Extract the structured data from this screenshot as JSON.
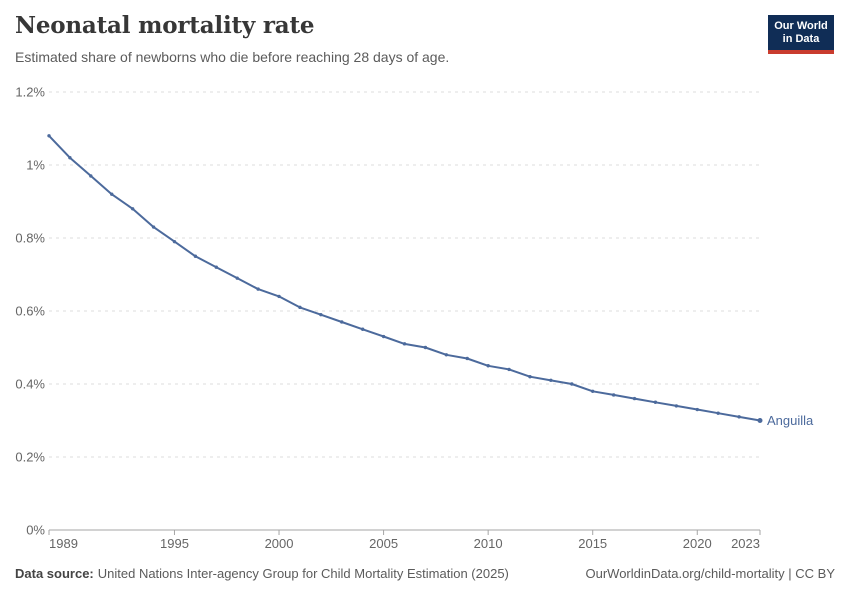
{
  "header": {
    "title": "Neonatal mortality rate",
    "subtitle": "Estimated share of newborns who die before reaching 28 days of age.",
    "logo": {
      "line1": "Our World",
      "line2": "in Data"
    }
  },
  "chart_data": {
    "type": "line",
    "title": "Neonatal mortality rate",
    "xlabel": "",
    "ylabel": "",
    "unit": "%",
    "xlim": [
      1989,
      2023
    ],
    "ylim": [
      0,
      1.2
    ],
    "grid": "horizontal-dashed",
    "legend_position": "end-of-line-label",
    "x_ticks": [
      1989,
      1995,
      2000,
      2005,
      2010,
      2015,
      2020,
      2023
    ],
    "y_ticks": [
      "0%",
      "0.2%",
      "0.4%",
      "0.6%",
      "0.8%",
      "1%",
      "1.2%"
    ],
    "y_tick_values": [
      0,
      0.2,
      0.4,
      0.6,
      0.8,
      1.0,
      1.2
    ],
    "series": [
      {
        "name": "Anguilla",
        "color": "#4c6a9c",
        "x": [
          1989,
          1990,
          1991,
          1992,
          1993,
          1994,
          1995,
          1996,
          1997,
          1998,
          1999,
          2000,
          2001,
          2002,
          2003,
          2004,
          2005,
          2006,
          2007,
          2008,
          2009,
          2010,
          2011,
          2012,
          2013,
          2014,
          2015,
          2016,
          2017,
          2018,
          2019,
          2020,
          2021,
          2022,
          2023
        ],
        "values": [
          1.08,
          1.02,
          0.97,
          0.92,
          0.88,
          0.83,
          0.79,
          0.75,
          0.72,
          0.69,
          0.66,
          0.64,
          0.61,
          0.59,
          0.57,
          0.55,
          0.53,
          0.51,
          0.5,
          0.48,
          0.47,
          0.45,
          0.44,
          0.42,
          0.41,
          0.4,
          0.38,
          0.37,
          0.36,
          0.35,
          0.34,
          0.33,
          0.32,
          0.31,
          0.3
        ]
      }
    ]
  },
  "footer": {
    "source_label": "Data source:",
    "source_text": "United Nations Inter-agency Group for Child Mortality Estimation (2025)",
    "link_text": "OurWorldinData.org/child-mortality | CC BY"
  },
  "colors": {
    "line": "#4c6a9c",
    "gridline": "#dddddd",
    "axis": "#a5a5a5",
    "tick_label": "#666666",
    "title": "#373737",
    "subtitle": "#5b5b5b",
    "logo_bg": "#102d56",
    "logo_accent": "#c93c2e"
  }
}
